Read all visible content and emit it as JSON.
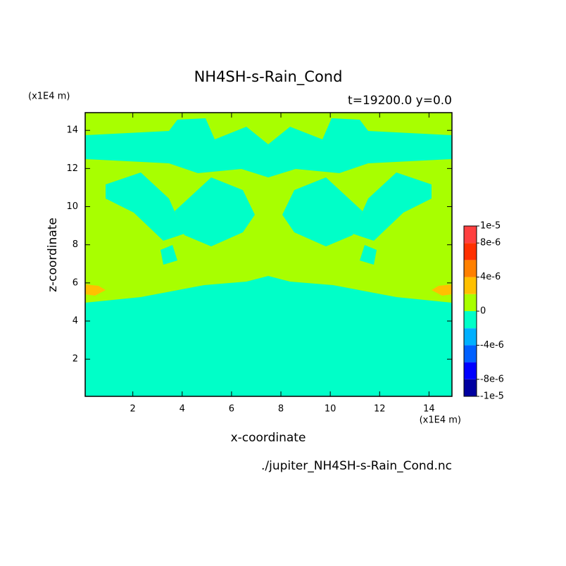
{
  "chart_data": {
    "type": "contour",
    "title": "NH4SH-s-Rain_Cond",
    "subtitle": "t=19200.0 y=0.0",
    "xlabel": "x-coordinate",
    "ylabel": "z-coordinate",
    "x_unit": "(x1E4 m)",
    "y_unit": "(x1E4 m)",
    "source": "./jupiter_NH4SH-s-Rain_Cond.nc",
    "xlim": [
      0.07,
      14.93
    ],
    "ylim": [
      0.05,
      14.93
    ],
    "xticks": [
      2,
      4,
      6,
      8,
      10,
      12,
      14
    ],
    "yticks": [
      2,
      4,
      6,
      8,
      10,
      12,
      14
    ],
    "colorbar": {
      "levels": [
        -1e-05,
        -8e-06,
        -6e-06,
        -4e-06,
        -2e-06,
        0,
        2e-06,
        4e-06,
        6e-06,
        8e-06,
        1e-05
      ],
      "colors": [
        "#0000a0",
        "#0000ff",
        "#0060ff",
        "#00b0ff",
        "#00ffc8",
        "#a8ff00",
        "#ffc000",
        "#ff8000",
        "#ff3000",
        "#ff4040"
      ],
      "ticks": [
        {
          "value": 1e-05,
          "label": "1e-5"
        },
        {
          "value": 8e-06,
          "label": "8e-6"
        },
        {
          "value": 4e-06,
          "label": "4e-6"
        },
        0,
        {
          "value": -4e-06,
          "label": "-4e-6"
        },
        {
          "value": -8e-06,
          "label": "-8e-6"
        },
        {
          "value": -1e-05,
          "label": "-1e-5"
        }
      ]
    }
  }
}
